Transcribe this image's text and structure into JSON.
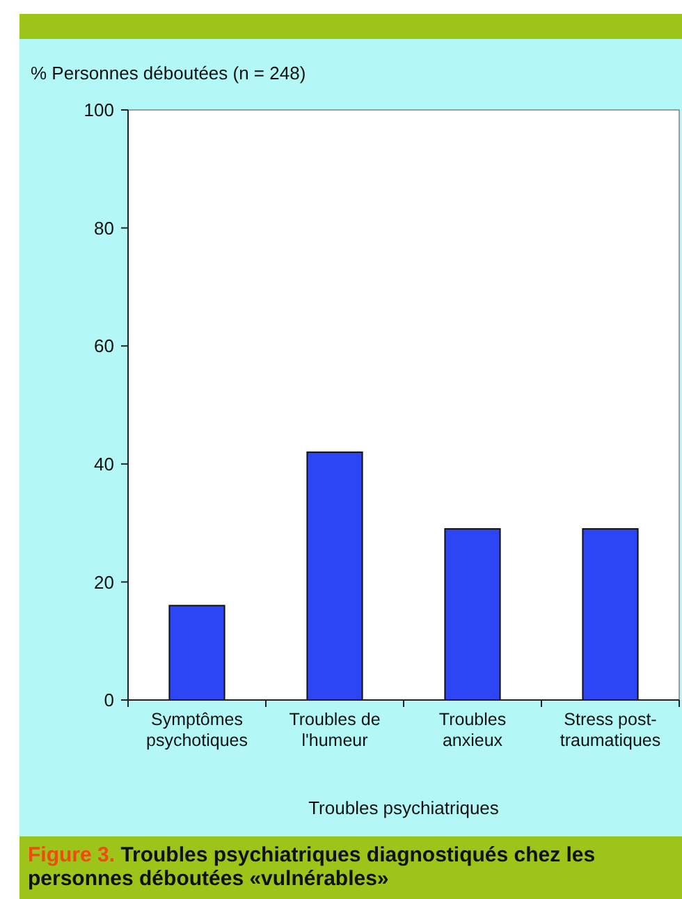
{
  "chart_data": {
    "type": "bar",
    "title": "Troubles psychiatriques diagnostiqués chez les personnes déboutées «vulnérables»",
    "ylabel": "% Personnes déboutées (n = 248)",
    "xlabel": "Troubles psychiatriques",
    "annotations": [
      "Figure 3."
    ],
    "categories": [
      "Symptômes psychotiques",
      "Troubles de l'humeur",
      "Troubles anxieux",
      "Stress post-traumatiques"
    ],
    "values": [
      16,
      42,
      29,
      29
    ],
    "color": "#2d46f5",
    "ylim": [
      0,
      100
    ],
    "yticks": [
      0,
      20,
      40,
      60,
      80,
      100
    ],
    "grid": false
  }
}
